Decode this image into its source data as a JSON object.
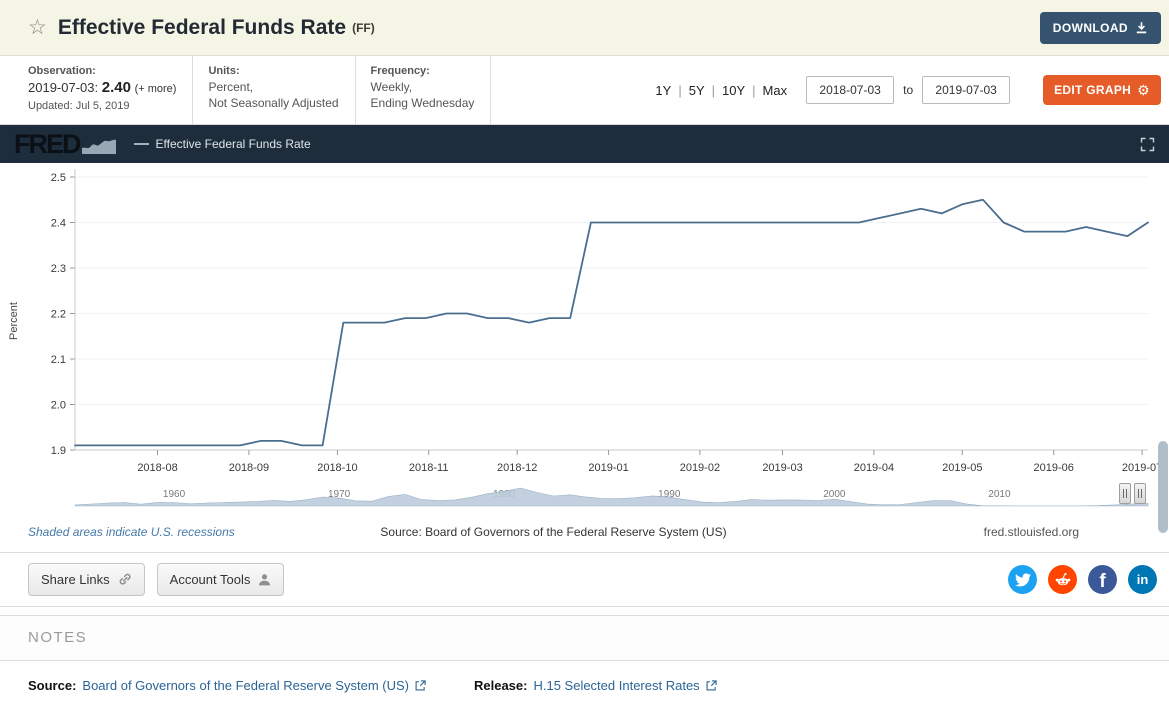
{
  "header": {
    "title": "Effective Federal Funds Rate",
    "series_id": "(FF)",
    "download_label": "DOWNLOAD"
  },
  "meta": {
    "observation_label": "Observation:",
    "observation_date": "2019-07-03:",
    "observation_value": "2.40",
    "observation_more": "(+ more)",
    "updated": "Updated: Jul 5, 2019",
    "units_label": "Units:",
    "units_line1": "Percent,",
    "units_line2": "Not Seasonally Adjusted",
    "frequency_label": "Frequency:",
    "frequency_line1": "Weekly,",
    "frequency_line2": "Ending Wednesday"
  },
  "controls": {
    "ranges": [
      "1Y",
      "5Y",
      "10Y",
      "Max"
    ],
    "range_separator": "|",
    "date_start": "2018-07-03",
    "date_to_label": "to",
    "date_end": "2019-07-03",
    "edit_graph_label": "EDIT GRAPH"
  },
  "graph": {
    "brand": "FRED",
    "legend_label": "Effective Federal Funds Rate",
    "footer_left": "Shaded areas indicate U.S. recessions",
    "footer_center": "Source: Board of Governors of the Federal Reserve System (US)",
    "footer_right": "fred.stlouisfed.org"
  },
  "chart_data": {
    "type": "line",
    "title": "Effective Federal Funds Rate",
    "ylabel": "Percent",
    "ylim": [
      1.9,
      2.5
    ],
    "ytick_step": 0.1,
    "x_min": "2018-07-04",
    "x_max": "2019-07-03",
    "x_tick_labels": [
      "2018-08",
      "2018-09",
      "2018-10",
      "2018-11",
      "2018-12",
      "2019-01",
      "2019-02",
      "2019-03",
      "2019-04",
      "2019-05",
      "2019-06",
      "2019-07"
    ],
    "grid": "horizontal-light",
    "legend_position": "top-strip",
    "series": [
      {
        "name": "Effective Federal Funds Rate",
        "color": "#4a6e8f",
        "units": "Percent",
        "dates": [
          "2018-07-04",
          "2018-07-11",
          "2018-07-18",
          "2018-07-25",
          "2018-08-01",
          "2018-08-08",
          "2018-08-15",
          "2018-08-22",
          "2018-08-29",
          "2018-09-05",
          "2018-09-12",
          "2018-09-19",
          "2018-09-26",
          "2018-10-03",
          "2018-10-10",
          "2018-10-17",
          "2018-10-24",
          "2018-10-31",
          "2018-11-07",
          "2018-11-14",
          "2018-11-21",
          "2018-11-28",
          "2018-12-05",
          "2018-12-12",
          "2018-12-19",
          "2018-12-26",
          "2019-01-02",
          "2019-01-09",
          "2019-01-16",
          "2019-01-23",
          "2019-01-30",
          "2019-02-06",
          "2019-02-13",
          "2019-02-20",
          "2019-02-27",
          "2019-03-06",
          "2019-03-13",
          "2019-03-20",
          "2019-03-27",
          "2019-04-03",
          "2019-04-10",
          "2019-04-17",
          "2019-04-24",
          "2019-05-01",
          "2019-05-08",
          "2019-05-15",
          "2019-05-22",
          "2019-05-29",
          "2019-06-05",
          "2019-06-12",
          "2019-06-19",
          "2019-06-26",
          "2019-07-03"
        ],
        "values": [
          1.91,
          1.91,
          1.91,
          1.91,
          1.91,
          1.91,
          1.91,
          1.91,
          1.91,
          1.92,
          1.92,
          1.91,
          1.91,
          2.18,
          2.18,
          2.18,
          2.19,
          2.19,
          2.2,
          2.2,
          2.19,
          2.19,
          2.18,
          2.19,
          2.19,
          2.4,
          2.4,
          2.4,
          2.4,
          2.4,
          2.4,
          2.4,
          2.4,
          2.4,
          2.4,
          2.4,
          2.4,
          2.4,
          2.4,
          2.41,
          2.42,
          2.43,
          2.42,
          2.44,
          2.45,
          2.4,
          2.38,
          2.38,
          2.38,
          2.39,
          2.38,
          2.37,
          2.4
        ]
      }
    ],
    "navigator": {
      "year_min": 1954,
      "year_max": 2019,
      "ymax": 20,
      "decade_labels": [
        "1960",
        "1970",
        "1980",
        "1990",
        "2000",
        "2010"
      ],
      "annual_values": [
        1.0,
        1.8,
        2.7,
        3.1,
        1.6,
        3.3,
        3.2,
        2.0,
        2.7,
        3.2,
        3.5,
        4.1,
        5.1,
        4.2,
        5.7,
        8.2,
        7.2,
        4.7,
        4.4,
        8.7,
        10.5,
        5.8,
        5.0,
        5.5,
        7.9,
        11.2,
        13.4,
        16.4,
        12.3,
        9.1,
        10.2,
        8.1,
        6.8,
        6.7,
        7.6,
        9.2,
        8.1,
        5.7,
        3.5,
        3.0,
        4.2,
        5.8,
        5.3,
        5.5,
        5.4,
        5.0,
        6.2,
        3.9,
        1.7,
        1.1,
        1.4,
        3.2,
        5.0,
        5.0,
        1.9,
        0.2,
        0.2,
        0.1,
        0.1,
        0.1,
        0.1,
        0.1,
        0.4,
        1.0,
        1.8,
        2.4
      ]
    }
  },
  "share": {
    "share_links_label": "Share Links",
    "account_tools_label": "Account Tools"
  },
  "notes": {
    "heading": "NOTES",
    "source_label": "Source:",
    "source_link": "Board of Governors of the Federal Reserve System (US)",
    "release_label": "Release:",
    "release_link": "H.15 Selected Interest Rates"
  },
  "colors": {
    "header_bg": "#f5f5e6",
    "download_button": "#35536e",
    "edit_button": "#e65c28",
    "graph_strip_bg": "#1e2d3c",
    "line": "#4a6e8f",
    "navigator_fill": "#b9cadb",
    "link": "#2a6496",
    "twitter": "#1da1f2",
    "reddit": "#ff4500",
    "facebook": "#3b5998",
    "linkedin": "#0077b5"
  }
}
